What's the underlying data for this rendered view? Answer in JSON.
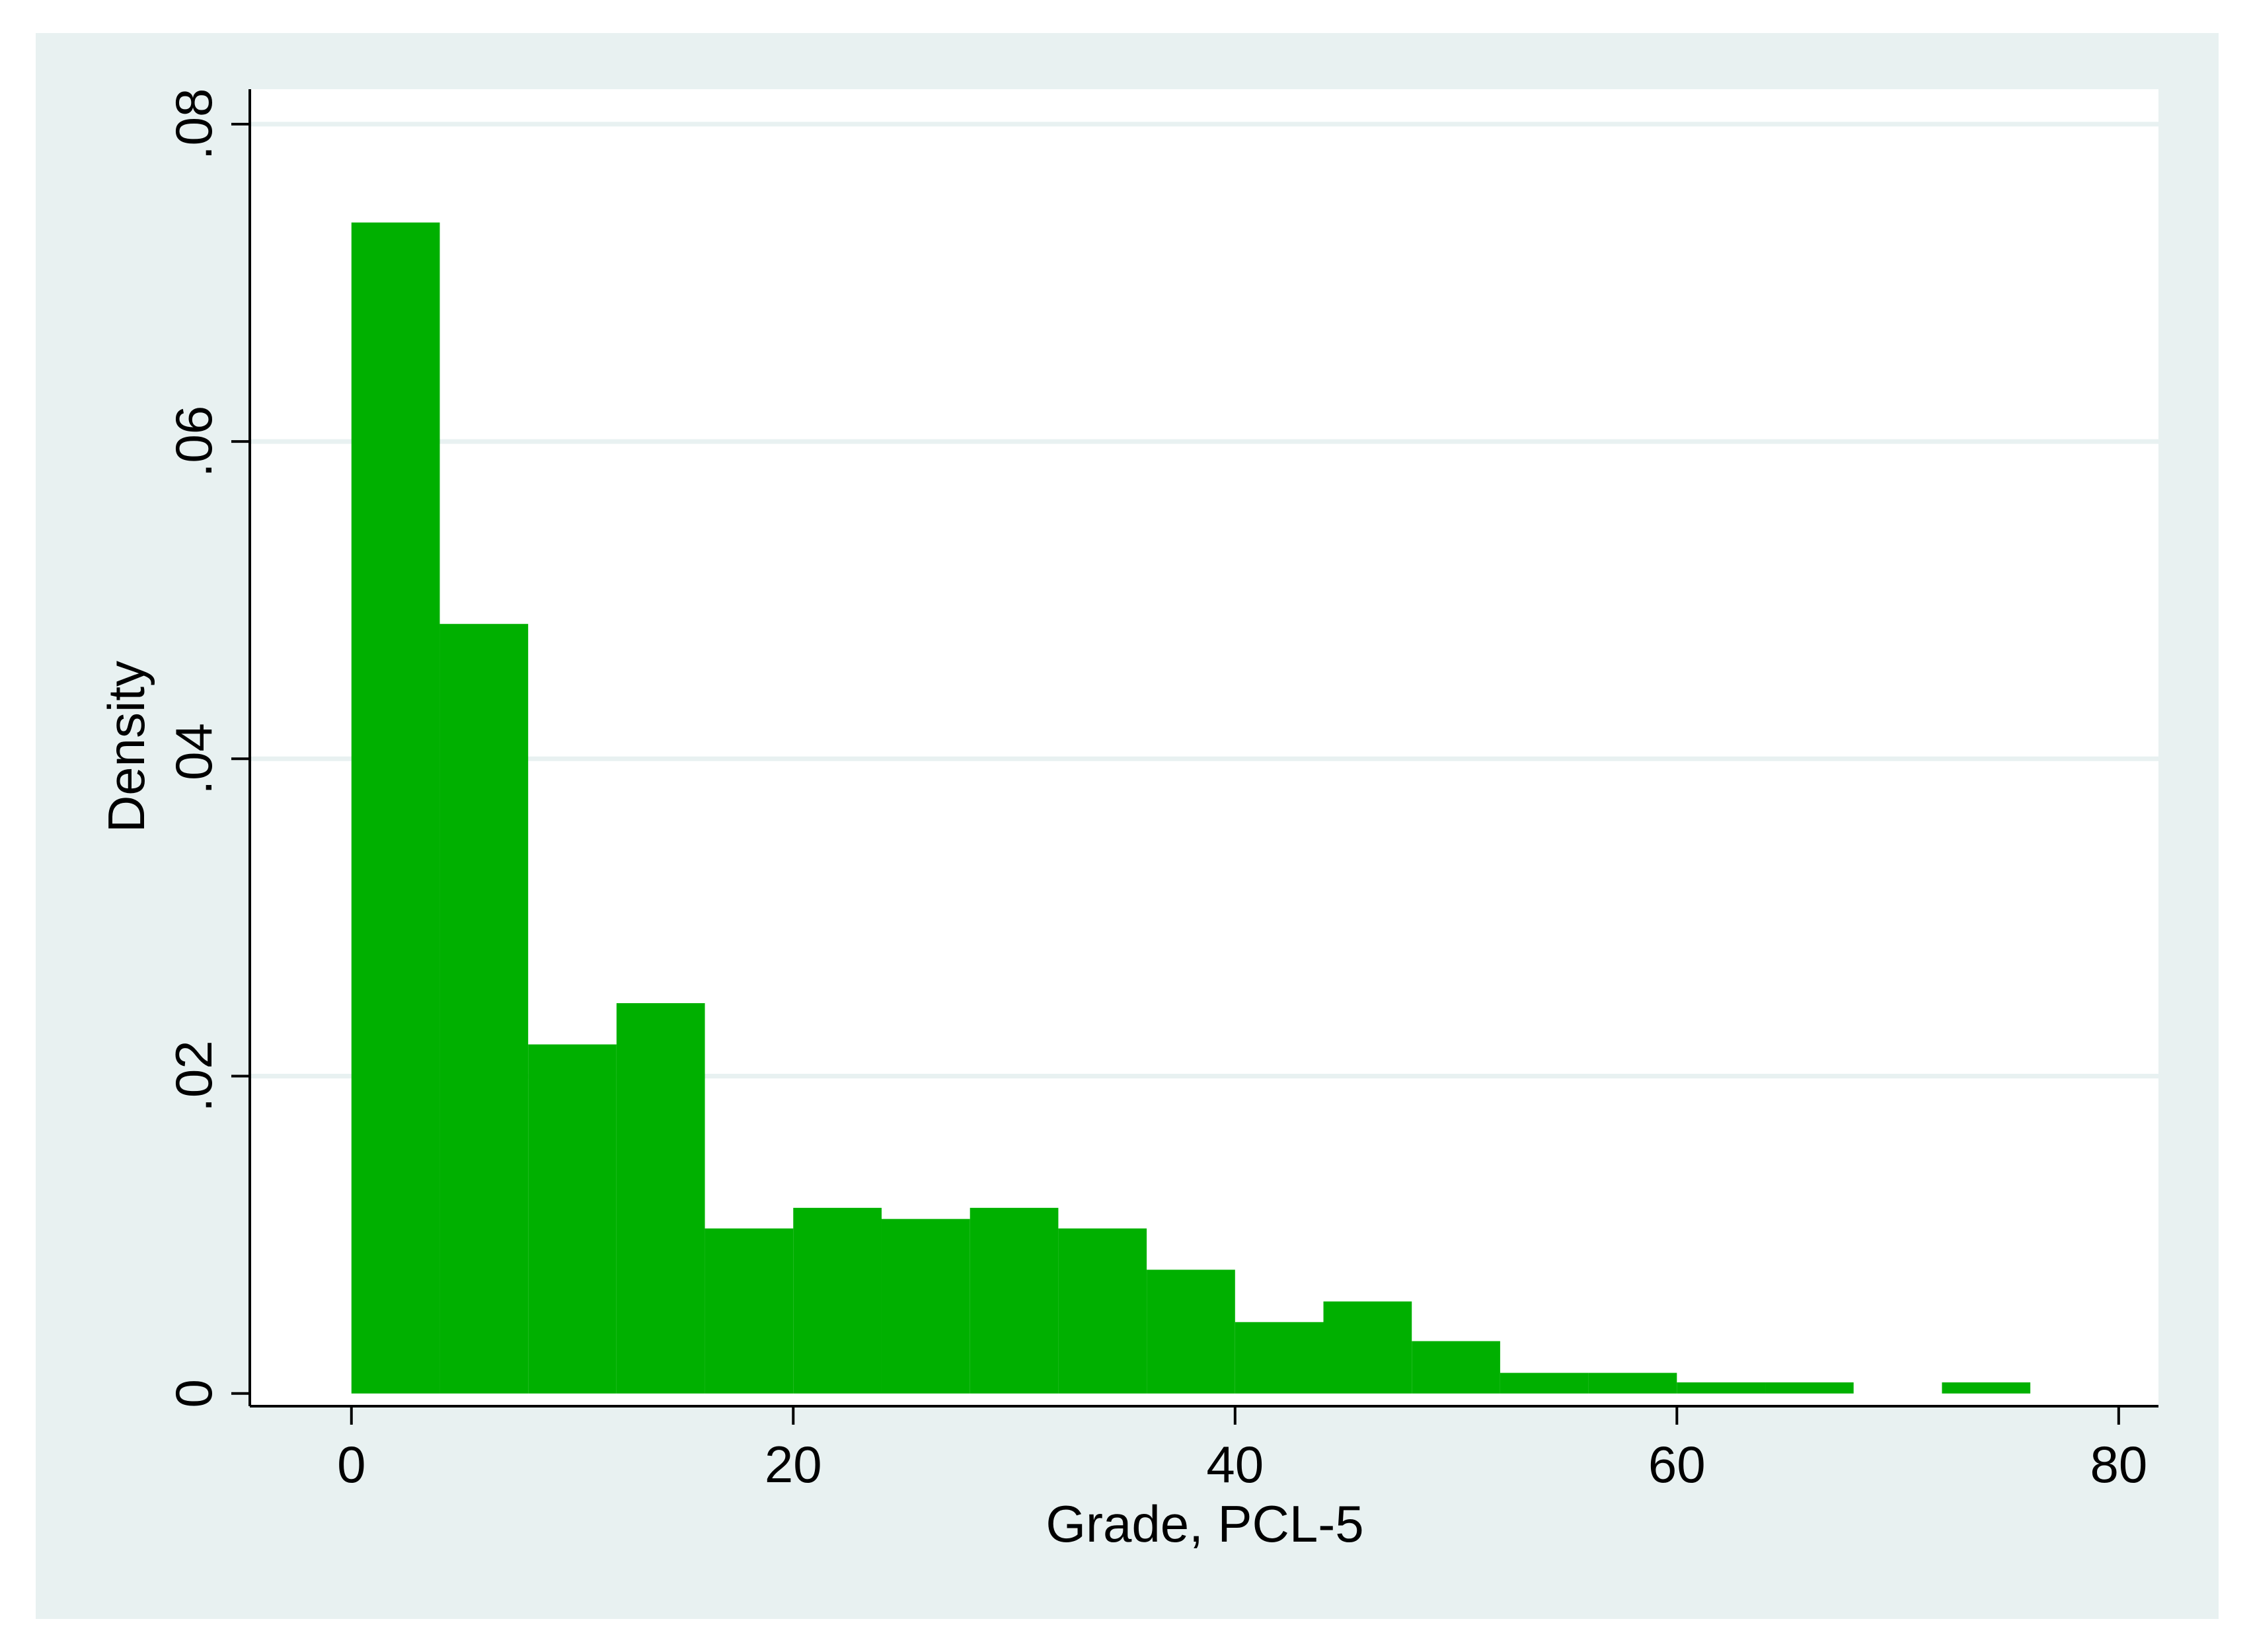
{
  "chart_data": {
    "type": "bar",
    "title": "",
    "xlabel": "Grade, PCL-5",
    "ylabel": "Density",
    "xlim": [
      -4.6,
      81.8
    ],
    "ylim": [
      -0.0008,
      0.0822
    ],
    "x_ticks": [
      0,
      20,
      40,
      60,
      80
    ],
    "x_tick_labels": [
      "0",
      "20",
      "40",
      "60",
      "80"
    ],
    "y_ticks": [
      0,
      0.02,
      0.04,
      0.06,
      0.08
    ],
    "y_tick_labels": [
      "0",
      ".02",
      ".04",
      ".06",
      ".08"
    ],
    "grid": "horizontal",
    "bin_width": 4,
    "bins": [
      {
        "x0": 0,
        "x1": 4,
        "density": 0.0738
      },
      {
        "x0": 4,
        "x1": 8,
        "density": 0.0485
      },
      {
        "x0": 8,
        "x1": 12,
        "density": 0.022
      },
      {
        "x0": 12,
        "x1": 16,
        "density": 0.0246
      },
      {
        "x0": 16,
        "x1": 20,
        "density": 0.0104
      },
      {
        "x0": 20,
        "x1": 24,
        "density": 0.0117
      },
      {
        "x0": 24,
        "x1": 28,
        "density": 0.011
      },
      {
        "x0": 28,
        "x1": 32,
        "density": 0.0117
      },
      {
        "x0": 32,
        "x1": 36,
        "density": 0.0104
      },
      {
        "x0": 36,
        "x1": 40,
        "density": 0.0078
      },
      {
        "x0": 40,
        "x1": 44,
        "density": 0.0045
      },
      {
        "x0": 44,
        "x1": 48,
        "density": 0.0058
      },
      {
        "x0": 48,
        "x1": 52,
        "density": 0.0033
      },
      {
        "x0": 52,
        "x1": 56,
        "density": 0.0013
      },
      {
        "x0": 56,
        "x1": 60,
        "density": 0.0013
      },
      {
        "x0": 60,
        "x1": 64,
        "density": 0.0007
      },
      {
        "x0": 64,
        "x1": 68,
        "density": 0.0007
      },
      {
        "x0": 68,
        "x1": 72,
        "density": 0.0
      },
      {
        "x0": 72,
        "x1": 76,
        "density": 0.0007
      }
    ],
    "colors": {
      "bar": "#00b000",
      "outer_background": "#e8f1f1",
      "plot_background": "#ffffff",
      "grid": "#e8f1f1",
      "axis": "#000000"
    }
  }
}
